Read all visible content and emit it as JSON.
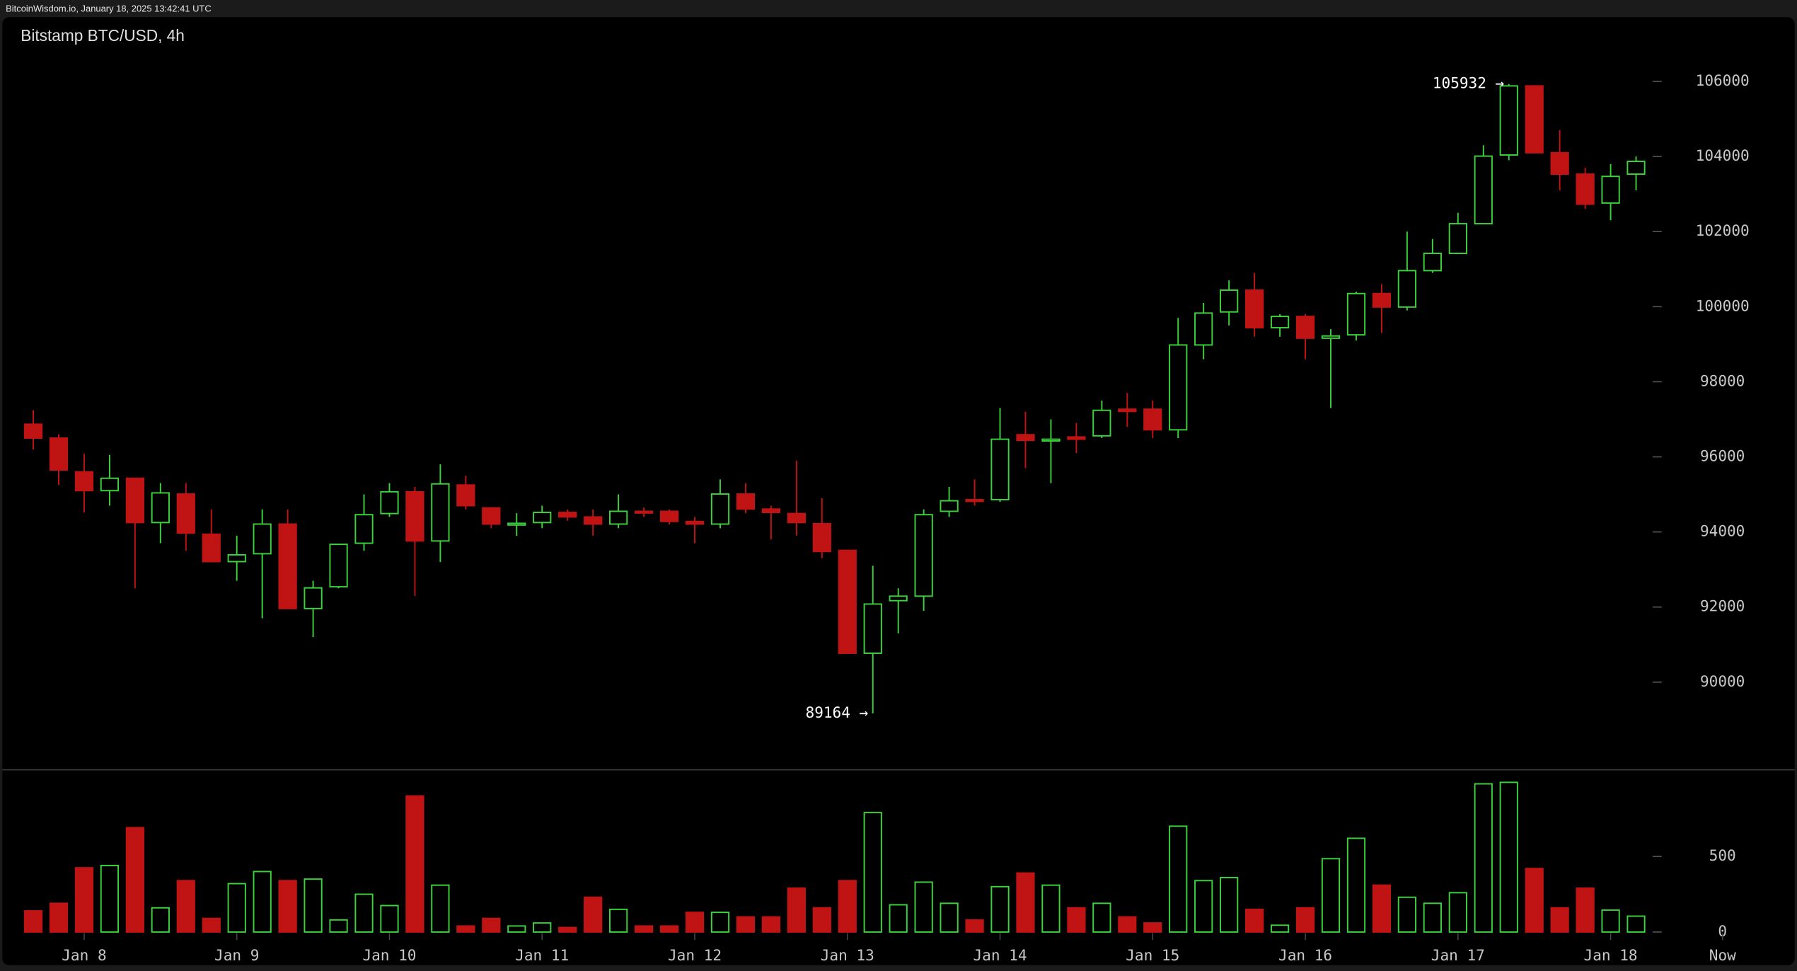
{
  "header": {
    "source": "BitcoinWisdom.io, January 18, 2025 13:42:41 UTC"
  },
  "chart_data": [
    {
      "type": "candlestick",
      "title": "Bitstamp BTC/USD, 4h",
      "up_color": "#3cd23c",
      "down_color": "#c01414",
      "open": [
        96870,
        96500,
        95600,
        95100,
        95430,
        94250,
        95010,
        93940,
        93210,
        93420,
        94210,
        91960,
        92540,
        93700,
        94490,
        95070,
        93760,
        95250,
        94640,
        94200,
        94250,
        94520,
        94400,
        94210,
        94550,
        94550,
        94280,
        94210,
        95010,
        94610,
        94490,
        94220,
        93510,
        90770,
        92170,
        92290,
        94550,
        94860,
        94860,
        96590,
        96440,
        96530,
        96560,
        97270,
        97270,
        96720,
        98980,
        99860,
        100440,
        99440,
        99740,
        99160,
        99250,
        100350,
        99990,
        100960,
        101420,
        102210,
        104040,
        105880,
        104100,
        103530,
        102760,
        103530
      ],
      "high": [
        97240,
        96600,
        96080,
        96050,
        95430,
        95300,
        95300,
        94600,
        93900,
        94600,
        94600,
        92700,
        93670,
        95000,
        95300,
        95200,
        95800,
        95500,
        94640,
        94500,
        94700,
        94600,
        94600,
        95000,
        94650,
        94600,
        94400,
        95400,
        95300,
        94700,
        95900,
        94900,
        93510,
        93100,
        92500,
        94600,
        95200,
        95400,
        97300,
        97200,
        97000,
        96900,
        97500,
        97700,
        97500,
        99700,
        100100,
        100700,
        100900,
        99800,
        99800,
        99400,
        100400,
        100600,
        102000,
        101800,
        102500,
        104300,
        105932,
        105900,
        104700,
        103700,
        103800,
        104000
      ],
      "low": [
        96200,
        95250,
        94520,
        94700,
        92500,
        93700,
        93500,
        93200,
        92700,
        91700,
        91960,
        91200,
        92500,
        93500,
        94400,
        92300,
        93200,
        94600,
        94100,
        93900,
        94100,
        94300,
        93900,
        94100,
        94400,
        94200,
        93700,
        94100,
        94500,
        93800,
        93900,
        93300,
        90770,
        89164,
        91300,
        91900,
        94400,
        94700,
        94800,
        95700,
        95300,
        96100,
        96500,
        96800,
        96500,
        96500,
        98600,
        99500,
        99200,
        99200,
        98600,
        97300,
        99100,
        99300,
        99900,
        100900,
        101400,
        102200,
        103900,
        104100,
        103100,
        102600,
        102300,
        103100
      ],
      "close": [
        96500,
        95650,
        95100,
        95430,
        94250,
        95040,
        93970,
        93210,
        93390,
        94210,
        91960,
        92510,
        93670,
        94460,
        95070,
        93760,
        95280,
        94700,
        94210,
        94230,
        94520,
        94400,
        94210,
        94550,
        94510,
        94280,
        94210,
        95010,
        94610,
        94520,
        94250,
        93480,
        90770,
        92080,
        92290,
        94460,
        94830,
        94830,
        96470,
        96440,
        96470,
        96470,
        97240,
        97210,
        96720,
        98980,
        99830,
        100440,
        99440,
        99740,
        99160,
        99220,
        100350,
        99990,
        100960,
        101420,
        102210,
        104010,
        105880,
        104100,
        103530,
        102730,
        103470,
        103870
      ],
      "ylim": [
        87680,
        107710
      ],
      "yticks": [
        90000,
        92000,
        94000,
        96000,
        98000,
        100000,
        102000,
        104000,
        106000
      ],
      "annotations": [
        {
          "x": 58,
          "value": 105932,
          "label": "105932 →"
        },
        {
          "x": 33,
          "value": 89164,
          "label": "89164 →"
        }
      ]
    },
    {
      "type": "bar",
      "values": [
        140,
        190,
        425,
        440,
        690,
        160,
        340,
        90,
        320,
        400,
        340,
        350,
        80,
        250,
        175,
        900,
        310,
        40,
        90,
        40,
        60,
        30,
        230,
        150,
        40,
        40,
        130,
        130,
        100,
        100,
        290,
        160,
        340,
        790,
        180,
        330,
        190,
        80,
        300,
        390,
        310,
        160,
        190,
        100,
        60,
        700,
        340,
        360,
        150,
        45,
        160,
        485,
        620,
        310,
        230,
        190,
        260,
        980,
        990,
        420,
        160,
        290,
        145,
        105
      ],
      "ylim": [
        0,
        1069
      ],
      "yticks": [
        0,
        500
      ],
      "xticks": [
        {
          "value": 2,
          "label": "Jan 8"
        },
        {
          "value": 8,
          "label": "Jan 9"
        },
        {
          "value": 14,
          "label": "Jan 10"
        },
        {
          "value": 20,
          "label": "Jan 11"
        },
        {
          "value": 26,
          "label": "Jan 12"
        },
        {
          "value": 32,
          "label": "Jan 13"
        },
        {
          "value": 38,
          "label": "Jan 14"
        },
        {
          "value": 44,
          "label": "Jan 15"
        },
        {
          "value": 50,
          "label": "Jan 16"
        },
        {
          "value": 56,
          "label": "Jan 17"
        },
        {
          "value": 62,
          "label": "Jan 18"
        },
        {
          "value": 66.4,
          "label": "Now"
        }
      ]
    }
  ]
}
